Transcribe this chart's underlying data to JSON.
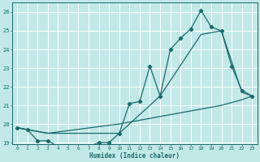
{
  "xlabel": "Humidex (Indice chaleur)",
  "bg_color": "#c2e8e8",
  "grid_color": "#ffffff",
  "line_color": "#1a6b6b",
  "line1_x": [
    0,
    1,
    2,
    3,
    4,
    5,
    6,
    7,
    8,
    9,
    10,
    11,
    12,
    13,
    14,
    15,
    16,
    17,
    18,
    19,
    20,
    21,
    22,
    23
  ],
  "line1_y": [
    19.8,
    19.7,
    19.1,
    19.1,
    18.8,
    18.8,
    18.8,
    18.8,
    19.0,
    19.0,
    19.5,
    21.1,
    21.2,
    23.1,
    21.5,
    24.0,
    24.6,
    25.1,
    26.1,
    25.2,
    25.0,
    23.1,
    21.8,
    21.5
  ],
  "line2_x": [
    0,
    3,
    10,
    14,
    18,
    20,
    22,
    23
  ],
  "line2_y": [
    19.8,
    19.5,
    19.5,
    21.5,
    24.8,
    25.0,
    21.7,
    21.5
  ],
  "line3_x": [
    0,
    1,
    3,
    10,
    15,
    18,
    20,
    22,
    23
  ],
  "line3_y": [
    19.8,
    19.7,
    19.5,
    20.0,
    20.5,
    20.8,
    21.0,
    21.3,
    21.5
  ],
  "ylim": [
    18.9,
    26.5
  ],
  "xlim": [
    -0.5,
    23.5
  ],
  "yticks": [
    19,
    20,
    21,
    22,
    23,
    24,
    25,
    26
  ],
  "xticks": [
    0,
    1,
    2,
    3,
    4,
    5,
    6,
    7,
    8,
    9,
    10,
    11,
    12,
    13,
    14,
    15,
    16,
    17,
    18,
    19,
    20,
    21,
    22,
    23
  ]
}
